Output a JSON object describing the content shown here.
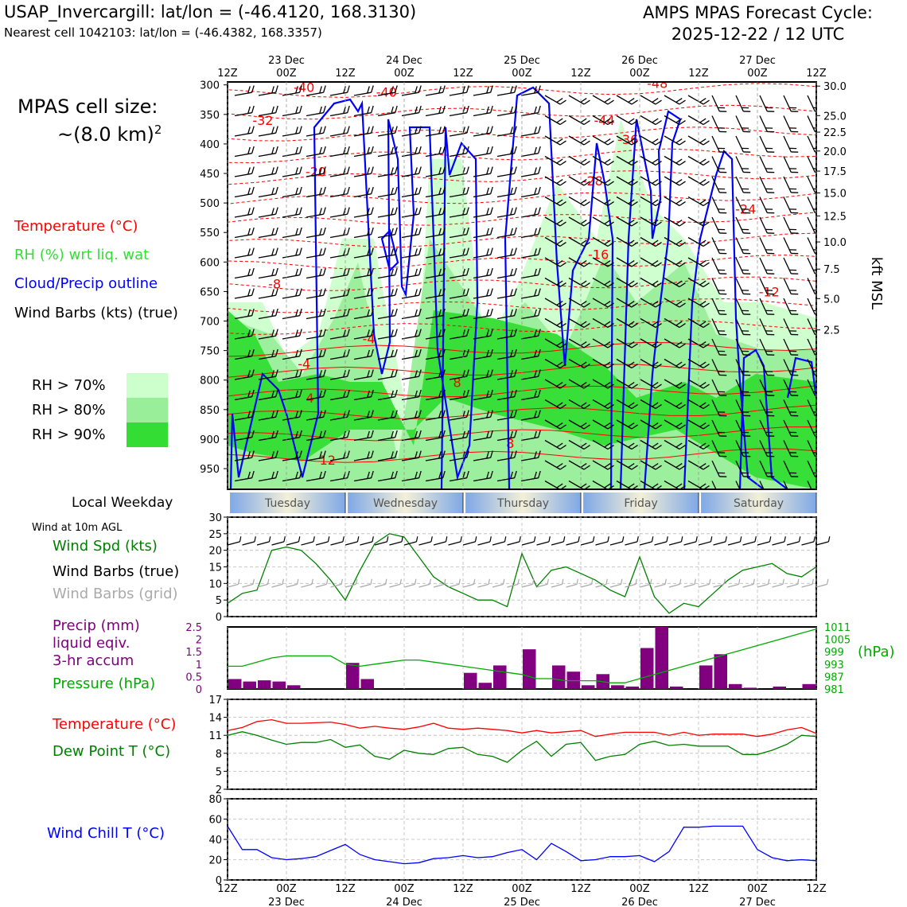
{
  "header": {
    "station": "USAP_Invercargill: lat/lon = (-46.4120, 168.3130)",
    "nearest": "Nearest cell 1042103: lat/lon = (-46.4382, 168.3357)",
    "cycle_line1": "AMPS MPAS Forecast Cycle:",
    "cycle_line2": "2025-12-22 / 12 UTC",
    "cell_size_label": "MPAS cell size:",
    "cell_size_value": "~(8.0 km)",
    "cell_size_exp": "2"
  },
  "legend": {
    "temperature": "Temperature (°C)",
    "rh": "RH (%) wrt liq. wat",
    "cloud": "Cloud/Precip outline",
    "wind": "Wind Barbs (kts) (true)",
    "rh70": "RH > 70%",
    "rh80": "RH > 80%",
    "rh90": "RH > 90%",
    "weekday_label": "Local Weekday",
    "wind10m": "Wind at 10m AGL",
    "wind_spd": "Wind Spd (kts)",
    "wind_true": "Wind Barbs (true)",
    "wind_grid": "Wind Barbs (grid)",
    "precip1": "Precip (mm)",
    "precip2": "liquid eqiv.",
    "precip3": "3-hr accum",
    "pressure": "Pressure (hPa)",
    "temp2": "Temperature (°C)",
    "dew": "Dew Point T (°C)",
    "windchill": "Wind Chill T (°C)",
    "kft": "kft MSL",
    "hpa_unit": "(hPa)"
  },
  "colors": {
    "temp": "#ff0000",
    "rh": "#33dd33",
    "cloud": "#0000ff",
    "wind_grid": "#aaaaaa",
    "precip": "#800080",
    "pressure": "#00aa00",
    "dew": "#008000",
    "windchill": "#0000ff",
    "rh70": "#ccffcc",
    "rh80": "#99ee99",
    "rh90": "#33dd33"
  },
  "time_axis": {
    "top_labels": [
      {
        "t": "12Z",
        "d": ""
      },
      {
        "t": "00Z",
        "d": "23 Dec"
      },
      {
        "t": "12Z",
        "d": ""
      },
      {
        "t": "00Z",
        "d": "24 Dec"
      },
      {
        "t": "12Z",
        "d": ""
      },
      {
        "t": "00Z",
        "d": "25 Dec"
      },
      {
        "t": "12Z",
        "d": ""
      },
      {
        "t": "00Z",
        "d": "26 Dec"
      },
      {
        "t": "12Z",
        "d": ""
      },
      {
        "t": "00Z",
        "d": "27 Dec"
      },
      {
        "t": "12Z",
        "d": ""
      }
    ],
    "weekdays": [
      "Tuesday",
      "Wednesday",
      "Thursday",
      "Friday",
      "Saturday"
    ]
  },
  "chart_data": [
    {
      "type": "heatmap",
      "title": "",
      "ylabel_left": "",
      "ylabel_right": "kft MSL",
      "pressure_ticks": [
        300,
        350,
        400,
        450,
        500,
        550,
        600,
        650,
        700,
        750,
        800,
        850,
        900,
        950
      ],
      "kft_ticks": [
        {
          "p": 302,
          "label": "30.0"
        },
        {
          "p": 352,
          "label": "25.0"
        },
        {
          "p": 380,
          "label": "22.5"
        },
        {
          "p": 412,
          "label": "20.0"
        },
        {
          "p": 446,
          "label": "17.5"
        },
        {
          "p": 483,
          "label": "15.0"
        },
        {
          "p": 522,
          "label": "12.5"
        },
        {
          "p": 566,
          "label": "10.0"
        },
        {
          "p": 612,
          "label": "7.5"
        },
        {
          "p": 662,
          "label": "5.0"
        },
        {
          "p": 715,
          "label": "2.5"
        }
      ],
      "temperature_labels": [
        {
          "x": 0.13,
          "p": 312,
          "v": "-40"
        },
        {
          "x": 0.27,
          "p": 320,
          "v": "-40"
        },
        {
          "x": 0.06,
          "p": 368,
          "v": "-32"
        },
        {
          "x": 0.15,
          "p": 455,
          "v": "-20"
        },
        {
          "x": 0.08,
          "p": 645,
          "v": "-8"
        },
        {
          "x": 0.24,
          "p": 738,
          "v": "-4"
        },
        {
          "x": 0.13,
          "p": 780,
          "v": "-4"
        },
        {
          "x": 0.14,
          "p": 838,
          "v": "4"
        },
        {
          "x": 0.39,
          "p": 812,
          "v": "8"
        },
        {
          "x": 0.48,
          "p": 915,
          "v": "8"
        },
        {
          "x": 0.17,
          "p": 943,
          "v": "12"
        },
        {
          "x": 0.73,
          "p": 305,
          "v": "-48"
        },
        {
          "x": 0.64,
          "p": 368,
          "v": "-44"
        },
        {
          "x": 0.68,
          "p": 400,
          "v": "-36"
        },
        {
          "x": 0.62,
          "p": 470,
          "v": "-28"
        },
        {
          "x": 0.88,
          "p": 518,
          "v": "-24"
        },
        {
          "x": 0.63,
          "p": 595,
          "v": "-16"
        },
        {
          "x": 0.92,
          "p": 658,
          "v": "-12"
        }
      ]
    },
    {
      "type": "line",
      "title": "",
      "ylabel": "Wind Spd (kts)",
      "ylim": [
        0,
        30
      ],
      "yticks": [
        0,
        5,
        10,
        15,
        20,
        25,
        30
      ],
      "x_hours": [
        0,
        3,
        6,
        9,
        12,
        15,
        18,
        21,
        24,
        27,
        30,
        33,
        36,
        39,
        42,
        45,
        48,
        51,
        54,
        57,
        60,
        63,
        66,
        69,
        72,
        75,
        78,
        81,
        84,
        87,
        90,
        93,
        96,
        99,
        102,
        105,
        108,
        111,
        114,
        117,
        120
      ],
      "series": [
        {
          "name": "Wind Spd (kts)",
          "values": [
            4,
            7,
            8,
            20,
            21,
            20,
            16,
            11,
            5,
            14,
            22,
            25,
            24,
            18,
            12,
            9,
            7,
            5,
            5,
            3,
            19,
            9,
            14,
            15,
            13,
            11,
            8,
            6,
            18,
            6,
            1,
            4,
            3,
            7,
            11,
            14,
            15,
            16,
            13,
            12,
            15
          ]
        }
      ]
    },
    {
      "type": "bar",
      "title": "",
      "ylabel": "Precip (mm)",
      "ylim": [
        0,
        2.5
      ],
      "yticks": [
        0,
        0.5,
        1.0,
        1.5,
        2.0,
        2.5
      ],
      "x_hours": [
        1.5,
        4.5,
        7.5,
        10.5,
        13.5,
        16.5,
        19.5,
        22.5,
        25.5,
        28.5,
        31.5,
        34.5,
        37.5,
        40.5,
        43.5,
        46.5,
        49.5,
        52.5,
        55.5,
        58.5,
        61.5,
        64.5,
        67.5,
        70.5,
        73.5,
        76.5,
        79.5,
        82.5,
        85.5,
        88.5,
        91.5,
        94.5,
        97.5,
        100.5,
        103.5,
        106.5,
        109.5,
        112.5,
        115.5,
        118.5
      ],
      "values": [
        0.4,
        0.3,
        0.35,
        0.3,
        0.15,
        0,
        0,
        0,
        1.05,
        0.4,
        0,
        0,
        0,
        0,
        0,
        0,
        0.65,
        0.25,
        0.95,
        0,
        1.6,
        0,
        0.95,
        0.7,
        0.15,
        0.6,
        0.15,
        0.1,
        1.65,
        2.5,
        0.1,
        0,
        0.95,
        1.4,
        0.2,
        0.05,
        0,
        0.1,
        0,
        0.2
      ],
      "pressure": {
        "name": "Pressure (hPa)",
        "ylim": [
          981,
          1011
        ],
        "yticks": [
          981,
          987,
          993,
          999,
          1005,
          1011
        ],
        "x_hours": [
          0,
          3,
          6,
          9,
          12,
          15,
          18,
          21,
          24,
          27,
          30,
          33,
          36,
          39,
          42,
          45,
          48,
          51,
          54,
          57,
          60,
          63,
          66,
          69,
          72,
          75,
          78,
          81,
          84,
          87,
          90,
          93,
          96,
          99,
          102,
          105,
          108,
          111,
          114,
          117,
          120
        ],
        "values": [
          992,
          992,
          994,
          996,
          997,
          997,
          997,
          997,
          993,
          992,
          993,
          994,
          995,
          995,
          994,
          993,
          992,
          991,
          990,
          989,
          988,
          986,
          986,
          985,
          985,
          985,
          984,
          984,
          986,
          988,
          990,
          992,
          994,
          996,
          998,
          1000,
          1002,
          1004,
          1006,
          1008,
          1010
        ]
      }
    },
    {
      "type": "line",
      "title": "",
      "ylim": [
        2,
        17
      ],
      "yticks": [
        2,
        5,
        8,
        11,
        14,
        17
      ],
      "x_hours": [
        0,
        3,
        6,
        9,
        12,
        15,
        18,
        21,
        24,
        27,
        30,
        33,
        36,
        39,
        42,
        45,
        48,
        51,
        54,
        57,
        60,
        63,
        66,
        69,
        72,
        75,
        78,
        81,
        84,
        87,
        90,
        93,
        96,
        99,
        102,
        105,
        108,
        111,
        114,
        117,
        120
      ],
      "series": [
        {
          "name": "Temperature (°C)",
          "values": [
            11.8,
            12.3,
            13.3,
            13.6,
            13.0,
            13.0,
            13.1,
            13.2,
            12.8,
            12.2,
            12.5,
            12.2,
            12.0,
            12.4,
            13.0,
            12.2,
            12.0,
            12.2,
            12.0,
            11.8,
            11.4,
            11.8,
            11.4,
            11.6,
            11.8,
            10.8,
            11.2,
            11.5,
            11.5,
            11.5,
            11.0,
            11.5,
            11.0,
            11.2,
            11.2,
            11.2,
            10.8,
            11.2,
            11.9,
            12.3,
            11.3
          ]
        },
        {
          "name": "Dew Point T (°C)",
          "values": [
            11.0,
            11.6,
            11.0,
            10.2,
            9.5,
            9.8,
            9.8,
            10.3,
            9.0,
            9.4,
            7.5,
            7.0,
            8.5,
            8.0,
            7.8,
            8.8,
            9.0,
            7.8,
            7.5,
            6.5,
            8.5,
            10.0,
            7.5,
            9.5,
            9.8,
            6.8,
            7.5,
            7.8,
            9.5,
            10.0,
            9.3,
            9.5,
            9.2,
            9.2,
            9.2,
            7.8,
            7.8,
            8.5,
            9.5,
            11.0,
            10.8
          ]
        }
      ]
    },
    {
      "type": "line",
      "title": "",
      "ylabel": "Wind Chill T (°C)",
      "ylim": [
        0,
        80
      ],
      "yticks": [
        0,
        20,
        40,
        60,
        80
      ],
      "x_hours": [
        0,
        3,
        6,
        9,
        12,
        15,
        18,
        21,
        24,
        27,
        30,
        33,
        36,
        39,
        42,
        45,
        48,
        51,
        54,
        57,
        60,
        63,
        66,
        69,
        72,
        75,
        78,
        81,
        84,
        87,
        90,
        93,
        96,
        99,
        102,
        105,
        108,
        111,
        114,
        117,
        120
      ],
      "series": [
        {
          "name": "Wind Chill T (°C)",
          "values": [
            53,
            30,
            30,
            22,
            20,
            21,
            23,
            29,
            35,
            25,
            20,
            18,
            16,
            17,
            21,
            22,
            24,
            22,
            23,
            27,
            30,
            20,
            36,
            28,
            19,
            20,
            23,
            23,
            24,
            18,
            28,
            52,
            52,
            53,
            53,
            53,
            30,
            22,
            19,
            20,
            19
          ]
        }
      ]
    }
  ]
}
